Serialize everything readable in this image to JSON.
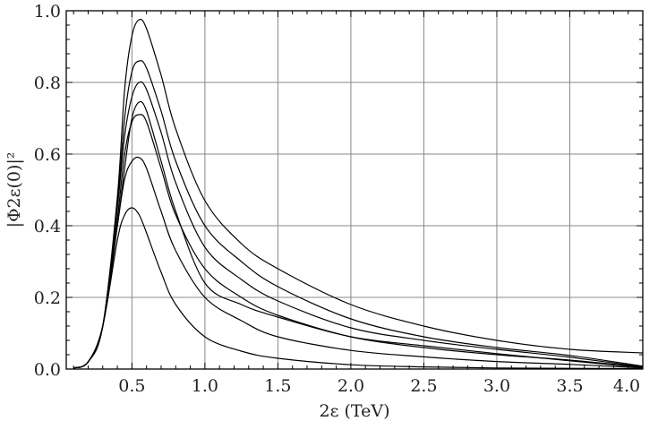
{
  "chart_data": {
    "type": "line",
    "title": "",
    "xlabel": "2ε (TeV)",
    "ylabel": "|Φ2ε(0)|²",
    "xlim": [
      0.05,
      4.0
    ],
    "ylim": [
      0.0,
      1.0
    ],
    "grid": true,
    "x_ticks": [
      "0.5",
      "1.0",
      "1.5",
      "2.0",
      "2.5",
      "3.0",
      "3.5",
      "4.0"
    ],
    "x_tick_values": [
      0.5,
      1.0,
      1.5,
      2.0,
      2.5,
      3.0,
      3.5,
      4.0
    ],
    "y_ticks": [
      "0.0",
      "0.2",
      "0.4",
      "0.6",
      "0.8",
      "1.0"
    ],
    "y_tick_values": [
      0.0,
      0.2,
      0.4,
      0.6,
      0.8,
      1.0
    ],
    "line_color": "#000000",
    "grid_color": "#888888",
    "x": [
      0.1,
      0.2,
      0.3,
      0.4,
      0.45,
      0.5,
      0.55,
      0.6,
      0.7,
      0.8,
      1.0,
      1.25,
      1.5,
      2.0,
      2.5,
      3.0,
      3.5,
      4.0
    ],
    "series": [
      {
        "values": [
          0.003,
          0.02,
          0.12,
          0.4,
          0.56,
          0.7,
          0.745,
          0.72,
          0.58,
          0.44,
          0.24,
          0.18,
          0.145,
          0.09,
          0.065,
          0.043,
          0.023,
          0.004
        ]
      },
      {
        "values": [
          0.003,
          0.02,
          0.12,
          0.46,
          0.7,
          0.83,
          0.86,
          0.84,
          0.72,
          0.58,
          0.4,
          0.3,
          0.23,
          0.14,
          0.09,
          0.06,
          0.038,
          0.008
        ]
      },
      {
        "values": [
          0.003,
          0.02,
          0.12,
          0.45,
          0.65,
          0.76,
          0.8,
          0.78,
          0.66,
          0.52,
          0.34,
          0.25,
          0.19,
          0.115,
          0.08,
          0.055,
          0.033,
          0.006
        ]
      },
      {
        "values": [
          0.003,
          0.02,
          0.12,
          0.42,
          0.6,
          0.69,
          0.71,
          0.69,
          0.56,
          0.43,
          0.28,
          0.2,
          0.15,
          0.09,
          0.06,
          0.04,
          0.025,
          0.005
        ]
      },
      {
        "values": [
          0.003,
          0.02,
          0.12,
          0.4,
          0.53,
          0.58,
          0.59,
          0.56,
          0.44,
          0.33,
          0.2,
          0.135,
          0.09,
          0.052,
          0.034,
          0.021,
          0.013,
          0.003
        ]
      },
      {
        "values": [
          0.003,
          0.02,
          0.12,
          0.36,
          0.43,
          0.45,
          0.43,
          0.38,
          0.27,
          0.18,
          0.09,
          0.05,
          0.03,
          0.012,
          0.006,
          0.003,
          0.002,
          0.001
        ]
      },
      {
        "values": [
          0.003,
          0.02,
          0.12,
          0.48,
          0.78,
          0.93,
          0.975,
          0.95,
          0.82,
          0.67,
          0.47,
          0.35,
          0.28,
          0.18,
          0.12,
          0.08,
          0.055,
          0.045
        ]
      }
    ]
  }
}
